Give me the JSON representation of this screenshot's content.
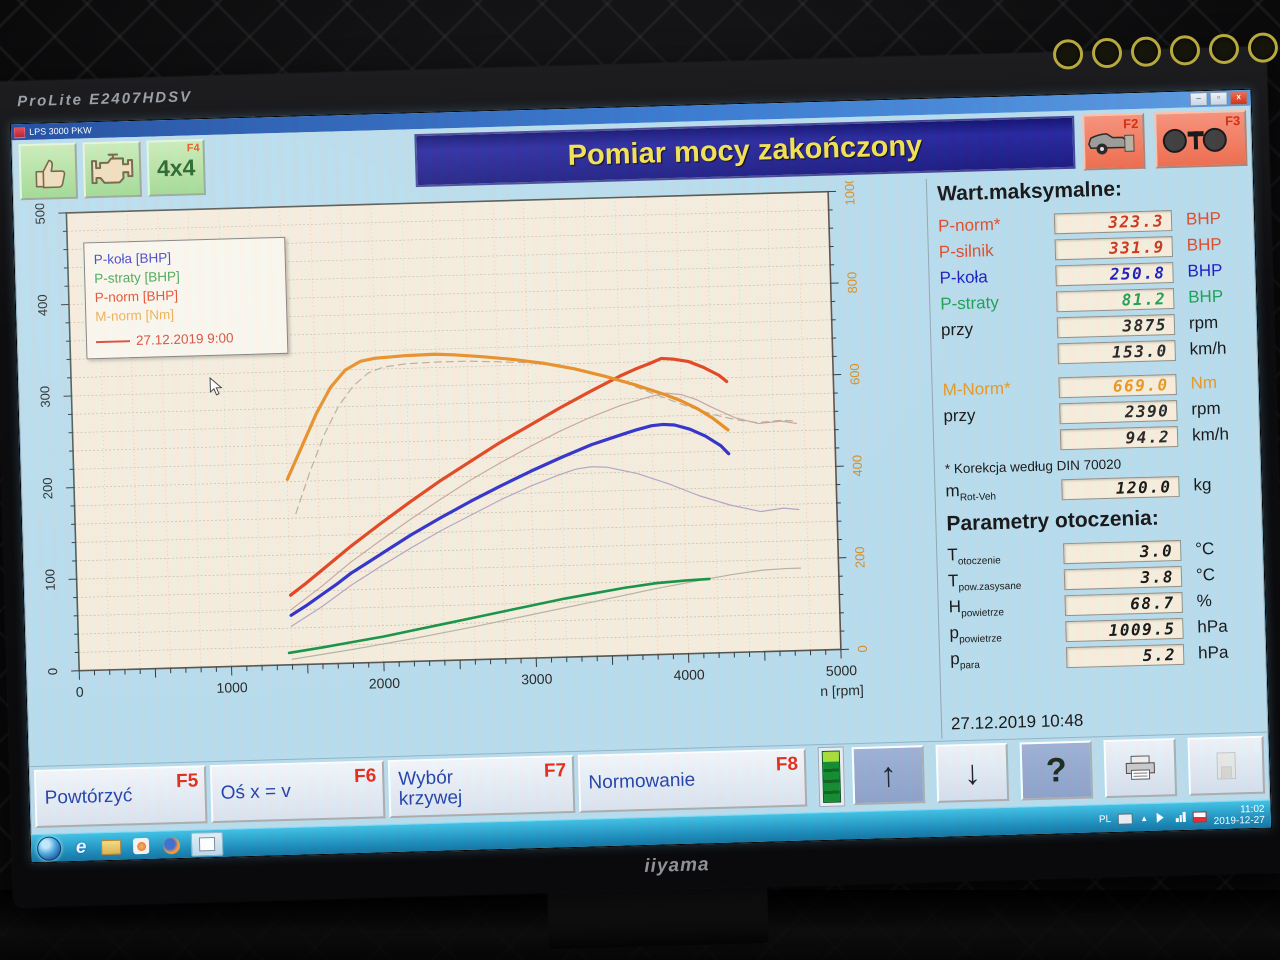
{
  "monitor": {
    "model": "ProLite E2407HDSV",
    "logo": "iiyama"
  },
  "window": {
    "title": "LPS 3000 PKW",
    "banner": "Pomiar mocy zakończony",
    "controls": {
      "minimize": "–",
      "maximize": "▫",
      "close": "x"
    }
  },
  "toolbar": {
    "f4_label": "4x4",
    "f4_key": "F4",
    "f2_key": "F2",
    "f3_key": "F3"
  },
  "legend": {
    "items": [
      {
        "label": "P-koła [BHP]",
        "color": "#3838c8"
      },
      {
        "label": "P-straty [BHP]",
        "color": "#3f9e46"
      },
      {
        "label": "P-norm [BHP]",
        "color": "#e04420"
      },
      {
        "label": "M-norm [Nm]",
        "color": "#ecaa46"
      }
    ],
    "run_date": "27.12.2019 9:00",
    "run_color": "#d84030"
  },
  "chart_data": {
    "type": "line",
    "xlabel": "n [rpm]",
    "xlim": [
      0,
      5000
    ],
    "x_ticks": [
      0,
      1000,
      2000,
      3000,
      4000,
      5000
    ],
    "left_axis": {
      "lim": [
        0,
        500
      ],
      "ticks": [
        0,
        100,
        200,
        300,
        400,
        500
      ],
      "color": "#222222"
    },
    "right_axis": {
      "lim": [
        0,
        1000
      ],
      "ticks": [
        0,
        200,
        400,
        600,
        800,
        1000
      ],
      "color": "#d98b1e"
    },
    "grid": true,
    "plot_bg": "#f5eddc",
    "series": [
      {
        "name": "previous-run M-norm [Nm]",
        "axis": "right",
        "color": "#b9aa98",
        "width": 1.2,
        "dash": "7 5",
        "points": [
          [
            1450,
            330
          ],
          [
            1550,
            420
          ],
          [
            1650,
            500
          ],
          [
            1750,
            562
          ],
          [
            1850,
            605
          ],
          [
            1950,
            632
          ],
          [
            2050,
            644
          ],
          [
            2200,
            650
          ],
          [
            2400,
            652
          ],
          [
            2600,
            652
          ],
          [
            2800,
            649
          ],
          [
            3000,
            645
          ],
          [
            3200,
            637
          ],
          [
            3400,
            622
          ],
          [
            3600,
            600
          ],
          [
            3800,
            572
          ],
          [
            4000,
            545
          ],
          [
            4200,
            521
          ],
          [
            4350,
            508
          ],
          [
            4500,
            500
          ],
          [
            4650,
            504
          ],
          [
            4750,
            501
          ]
        ]
      },
      {
        "name": "previous-run P-norm [BHP]",
        "axis": "left",
        "color": "#c4a49c",
        "width": 1.2,
        "dash": "",
        "points": [
          [
            1400,
            60
          ],
          [
            1600,
            84
          ],
          [
            1800,
            110
          ],
          [
            2000,
            133
          ],
          [
            2200,
            155
          ],
          [
            2400,
            176
          ],
          [
            2600,
            196
          ],
          [
            2800,
            214
          ],
          [
            3000,
            231
          ],
          [
            3200,
            247
          ],
          [
            3400,
            261
          ],
          [
            3600,
            273
          ],
          [
            3800,
            282
          ],
          [
            3900,
            285
          ],
          [
            4000,
            283
          ],
          [
            4100,
            277
          ],
          [
            4200,
            268
          ],
          [
            4350,
            256
          ],
          [
            4500,
            249
          ],
          [
            4650,
            251
          ],
          [
            4750,
            248
          ]
        ]
      },
      {
        "name": "previous-run P-koła [BHP]",
        "axis": "left",
        "color": "#b2a2c2",
        "width": 1.2,
        "dash": "",
        "points": [
          [
            1400,
            42
          ],
          [
            1600,
            62
          ],
          [
            1800,
            85
          ],
          [
            2000,
            105
          ],
          [
            2200,
            124
          ],
          [
            2400,
            142
          ],
          [
            2600,
            158
          ],
          [
            2800,
            174
          ],
          [
            3000,
            188
          ],
          [
            3200,
            200
          ],
          [
            3300,
            205
          ],
          [
            3400,
            207
          ],
          [
            3500,
            206
          ],
          [
            3700,
            198
          ],
          [
            3900,
            186
          ],
          [
            4100,
            172
          ],
          [
            4300,
            161
          ],
          [
            4500,
            153
          ],
          [
            4650,
            156
          ],
          [
            4750,
            154
          ]
        ]
      },
      {
        "name": "previous-run P-straty [BHP]",
        "axis": "left",
        "color": "#b3b3a2",
        "width": 1.2,
        "dash": "",
        "points": [
          [
            1400,
            6
          ],
          [
            1800,
            15
          ],
          [
            2200,
            25
          ],
          [
            2600,
            36
          ],
          [
            3000,
            48
          ],
          [
            3400,
            60
          ],
          [
            3800,
            72
          ],
          [
            4100,
            80
          ],
          [
            4300,
            85
          ],
          [
            4500,
            89
          ],
          [
            4650,
            90
          ],
          [
            4750,
            90
          ]
        ]
      },
      {
        "name": "P-straty [BHP]",
        "axis": "left",
        "color": "#109040",
        "width": 2.6,
        "dash": "",
        "points": [
          [
            1380,
            13
          ],
          [
            1600,
            18
          ],
          [
            1800,
            23
          ],
          [
            2000,
            28
          ],
          [
            2200,
            34
          ],
          [
            2400,
            40
          ],
          [
            2600,
            46
          ],
          [
            2800,
            52
          ],
          [
            3000,
            58
          ],
          [
            3200,
            64
          ],
          [
            3400,
            69
          ],
          [
            3600,
            74
          ],
          [
            3800,
            78
          ],
          [
            4000,
            80
          ],
          [
            4150,
            81
          ]
        ]
      },
      {
        "name": "P-koła [BHP]",
        "axis": "left",
        "color": "#2828c8",
        "width": 3.2,
        "dash": "",
        "points": [
          [
            1400,
            54
          ],
          [
            1500,
            64
          ],
          [
            1600,
            75
          ],
          [
            1700,
            86
          ],
          [
            1800,
            98
          ],
          [
            1900,
            108
          ],
          [
            2000,
            118
          ],
          [
            2200,
            138
          ],
          [
            2400,
            156
          ],
          [
            2600,
            173
          ],
          [
            2800,
            189
          ],
          [
            3000,
            204
          ],
          [
            3200,
            218
          ],
          [
            3400,
            231
          ],
          [
            3600,
            241
          ],
          [
            3700,
            246
          ],
          [
            3800,
            250
          ],
          [
            3875,
            251
          ],
          [
            3950,
            250
          ],
          [
            4050,
            245
          ],
          [
            4150,
            237
          ],
          [
            4250,
            226
          ],
          [
            4300,
            217
          ]
        ]
      },
      {
        "name": "P-norm [BHP]",
        "axis": "left",
        "color": "#e23c14",
        "width": 3.2,
        "dash": "",
        "points": [
          [
            1400,
            76
          ],
          [
            1500,
            88
          ],
          [
            1600,
            101
          ],
          [
            1700,
            114
          ],
          [
            1800,
            127
          ],
          [
            1900,
            139
          ],
          [
            2000,
            151
          ],
          [
            2200,
            174
          ],
          [
            2400,
            196
          ],
          [
            2600,
            216
          ],
          [
            2800,
            236
          ],
          [
            3000,
            254
          ],
          [
            3200,
            272
          ],
          [
            3400,
            289
          ],
          [
            3600,
            305
          ],
          [
            3700,
            312
          ],
          [
            3800,
            318
          ],
          [
            3875,
            323
          ],
          [
            3950,
            322
          ],
          [
            4050,
            319
          ],
          [
            4150,
            312
          ],
          [
            4250,
            303
          ],
          [
            4300,
            296
          ]
        ]
      },
      {
        "name": "M-norm [Nm]",
        "axis": "right",
        "color": "#e8891a",
        "width": 3.2,
        "dash": "",
        "points": [
          [
            1400,
            405
          ],
          [
            1500,
            475
          ],
          [
            1600,
            545
          ],
          [
            1700,
            603
          ],
          [
            1800,
            640
          ],
          [
            1900,
            658
          ],
          [
            2000,
            664
          ],
          [
            2100,
            666
          ],
          [
            2200,
            668
          ],
          [
            2390,
            669
          ],
          [
            2500,
            667
          ],
          [
            2700,
            661
          ],
          [
            2900,
            653
          ],
          [
            3100,
            643
          ],
          [
            3300,
            629
          ],
          [
            3500,
            611
          ],
          [
            3700,
            590
          ],
          [
            3900,
            566
          ],
          [
            4000,
            552
          ],
          [
            4100,
            535
          ],
          [
            4200,
            513
          ],
          [
            4300,
            486
          ]
        ]
      }
    ]
  },
  "max_panel": {
    "title": "Wart.maksymalne:",
    "rows": [
      {
        "label": "P-norm*",
        "value": "323.3",
        "unit": "BHP",
        "lc": "#e04826",
        "vc": "#c83418"
      },
      {
        "label": "P-silnik",
        "value": "331.9",
        "unit": "BHP",
        "lc": "#e04826",
        "vc": "#c83418"
      },
      {
        "label": "P-koła",
        "value": "250.8",
        "unit": "BHP",
        "lc": "#1818c0",
        "vc": "#1818c0"
      },
      {
        "label": "P-straty",
        "value": "81.2",
        "unit": "BHP",
        "lc": "#18a050",
        "vc": "#18a050"
      },
      {
        "label": "przy",
        "value": "3875",
        "unit": "rpm",
        "lc": "#111111",
        "vc": "#222222"
      },
      {
        "label": "",
        "value": "153.0",
        "unit": "km/h",
        "lc": "#111111",
        "vc": "#222222"
      },
      {
        "label": "M-Norm*",
        "value": "669.0",
        "unit": "Nm",
        "lc": "#e8961e",
        "vc": "#e8961e"
      },
      {
        "label": "przy",
        "value": "2390",
        "unit": "rpm",
        "lc": "#111111",
        "vc": "#222222"
      },
      {
        "label": "",
        "value": "94.2",
        "unit": "km/h",
        "lc": "#111111",
        "vc": "#222222"
      }
    ],
    "note": "* Korekcja według DIN 70020",
    "mrot": {
      "label": "m",
      "sub": "Rot-Veh",
      "value": "120.0",
      "unit": "kg"
    }
  },
  "env_panel": {
    "title": "Parametry otoczenia:",
    "rows": [
      {
        "label": "T",
        "sub": "otoczenie",
        "value": "3.0",
        "unit": "°C"
      },
      {
        "label": "T",
        "sub": "pow.zasysane",
        "value": "3.8",
        "unit": "°C"
      },
      {
        "label": "H",
        "sub": "powietrze",
        "value": "68.7",
        "unit": "%"
      },
      {
        "label": "p",
        "sub": "powietrze",
        "value": "1009.5",
        "unit": "hPa"
      },
      {
        "label": "p",
        "sub": "para",
        "value": "5.2",
        "unit": "hPa"
      }
    ]
  },
  "datetime": "27.12.2019  10:48",
  "fkeys": {
    "f5": {
      "label": "Powtórzyć",
      "key": "F5"
    },
    "f6": {
      "label": "Oś x = v",
      "key": "F6"
    },
    "f7": {
      "label": "Wybór",
      "label2": "krzywej",
      "key": "F7"
    },
    "f8": {
      "label": "Normowanie",
      "key": "F8"
    }
  },
  "taskbar": {
    "lang": "PL",
    "time": "11:02",
    "date": "2019-12-27"
  },
  "colors": {
    "screen_bg": "#b7dcec",
    "banner_bg": "#15157e",
    "banner_text": "#f2e14c",
    "fkey_red": "#e42814",
    "button_green": "#9cd88c",
    "button_salmon": "#ee6a4a",
    "value_box_bg": "#f7eedb",
    "taskbar": "#1486b6"
  }
}
